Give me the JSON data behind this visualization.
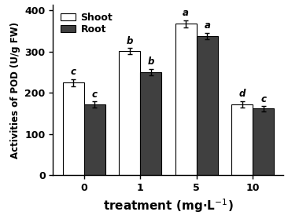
{
  "groups": [
    "0",
    "1",
    "5",
    "10"
  ],
  "shoot_values": [
    225,
    302,
    368,
    172
  ],
  "root_values": [
    172,
    250,
    338,
    162
  ],
  "shoot_errors": [
    8,
    7,
    9,
    8
  ],
  "root_errors": [
    7,
    8,
    8,
    6
  ],
  "shoot_labels": [
    "c",
    "b",
    "a",
    "d"
  ],
  "root_labels": [
    "c",
    "b",
    "a",
    "c"
  ],
  "shoot_color": "#ffffff",
  "root_color": "#404040",
  "bar_edge_color": "#000000",
  "ylabel": "Activities of POD (U/g FW)",
  "ylim": [
    0,
    415
  ],
  "yticks": [
    0,
    100,
    200,
    300,
    400
  ],
  "legend_shoot": "Shoot",
  "legend_root": "Root",
  "bar_width": 0.38,
  "figsize": [
    3.66,
    2.79
  ],
  "dpi": 100,
  "ylabel_fontsize": 8.5,
  "xlabel_fontsize": 11,
  "tick_fontsize": 9,
  "legend_fontsize": 9,
  "errorbar_capsize": 2.5,
  "errorbar_linewidth": 1.0,
  "annotation_fontsize": 8.5
}
